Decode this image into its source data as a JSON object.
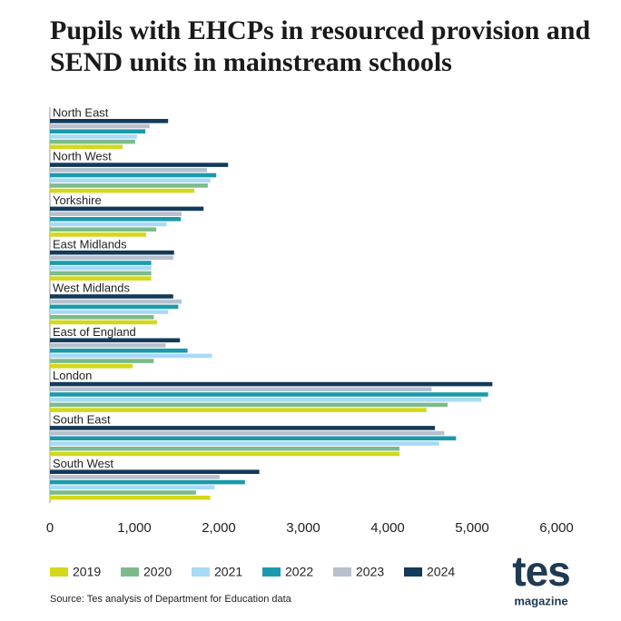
{
  "chart_data": {
    "type": "hbar",
    "title": "Pupils with EHCPs in resourced provision and SEND units in mainstream schools",
    "categories": [
      "North East",
      "North West",
      "Yorkshire",
      "East Midlands",
      "West Midlands",
      "East of England",
      "London",
      "South East",
      "South West"
    ],
    "series": [
      {
        "name": "2019",
        "color": "#d3d81a",
        "values": [
          860,
          1710,
          1140,
          1200,
          1270,
          980,
          4460,
          4140,
          1900
        ]
      },
      {
        "name": "2020",
        "color": "#7dbb8a",
        "values": [
          1010,
          1870,
          1260,
          1200,
          1230,
          1230,
          4710,
          4140,
          1730
        ]
      },
      {
        "name": "2021",
        "color": "#a8daf5",
        "values": [
          1030,
          1900,
          1380,
          1200,
          1400,
          1920,
          5110,
          4610,
          1950
        ]
      },
      {
        "name": "2022",
        "color": "#1a9aab",
        "values": [
          1130,
          1970,
          1550,
          1200,
          1520,
          1630,
          5190,
          4810,
          2310
        ]
      },
      {
        "name": "2023",
        "color": "#b8c0cc",
        "values": [
          1180,
          1860,
          1560,
          1460,
          1560,
          1370,
          4520,
          4670,
          2010
        ]
      },
      {
        "name": "2024",
        "color": "#143a5a",
        "values": [
          1400,
          2110,
          1820,
          1470,
          1460,
          1540,
          5240,
          4560,
          2480
        ]
      }
    ],
    "xlim": [
      0,
      6000
    ],
    "xticks": [
      0,
      {
        "value": 1000,
        "label": "1,000"
      },
      {
        "value": 2000,
        "label": "2,000"
      },
      {
        "value": 3000,
        "label": "3,000"
      },
      {
        "value": 4000,
        "label": "4,000"
      },
      {
        "value": 5000,
        "label": "5,000"
      },
      {
        "value": 6000,
        "label": "6,000"
      }
    ],
    "grid": false,
    "legend": "bottom",
    "source": "Source: Tes analysis of Department for Education data"
  },
  "branding": {
    "logo": "tes",
    "tagline": "magazine"
  }
}
